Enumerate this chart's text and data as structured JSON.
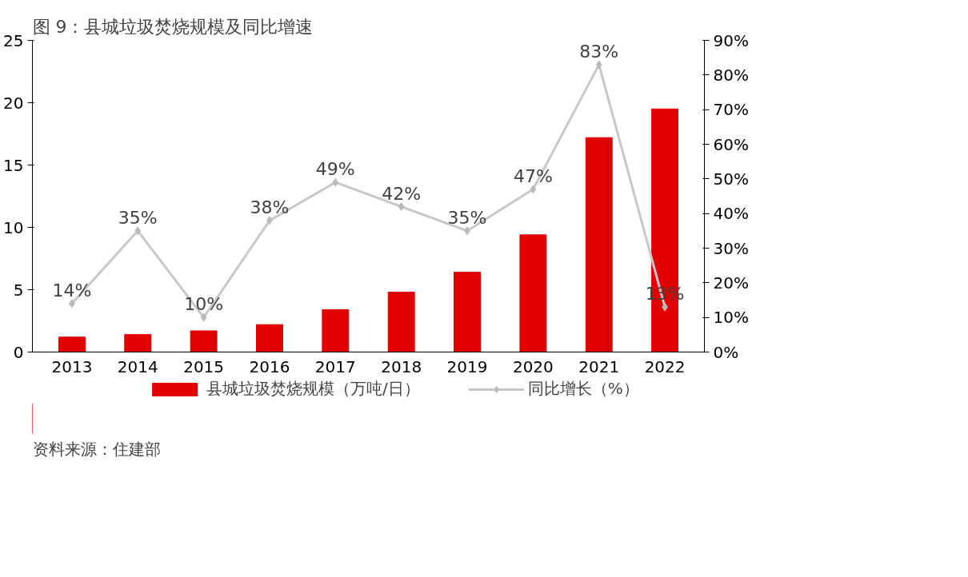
{
  "chart_data": {
    "type": "bar",
    "title": "图 9：县城垃圾焚烧规模及同比增速",
    "categories": [
      "2013",
      "2014",
      "2015",
      "2016",
      "2017",
      "2018",
      "2019",
      "2020",
      "2021",
      "2022"
    ],
    "series": [
      {
        "name": "县城垃圾焚烧规模（万吨/日）",
        "color": "#e00000",
        "values": [
          1.2,
          1.4,
          1.7,
          2.2,
          3.4,
          4.8,
          6.4,
          9.4,
          17.2,
          19.5
        ]
      },
      {
        "name": "同比增长（%）",
        "type": "line",
        "axis": "y2",
        "color": "#c8c8c8",
        "marker": "diamond",
        "values": [
          14,
          35,
          10,
          38,
          49,
          42,
          35,
          47,
          83,
          13
        ],
        "value_labels": [
          "14%",
          "35%",
          "10%",
          "38%",
          "49%",
          "42%",
          "35%",
          "47%",
          "83%",
          "13%"
        ]
      }
    ],
    "ylim": [
      0,
      25
    ],
    "yticks": [
      0,
      5,
      10,
      15,
      20,
      25
    ],
    "y2lim": [
      0,
      90
    ],
    "y2ticks": [
      {
        "value": 0,
        "label": "0%"
      },
      {
        "value": 10,
        "label": "10%"
      },
      {
        "value": 20,
        "label": "20%"
      },
      {
        "value": 30,
        "label": "30%"
      },
      {
        "value": 40,
        "label": "40%"
      },
      {
        "value": 50,
        "label": "50%"
      },
      {
        "value": 60,
        "label": "60%"
      },
      {
        "value": 70,
        "label": "70%"
      },
      {
        "value": 80,
        "label": "80%"
      },
      {
        "value": 90,
        "label": "90%"
      }
    ],
    "grid": false,
    "legend": "bottom",
    "annotations": [
      "资料来源：住建部"
    ]
  }
}
